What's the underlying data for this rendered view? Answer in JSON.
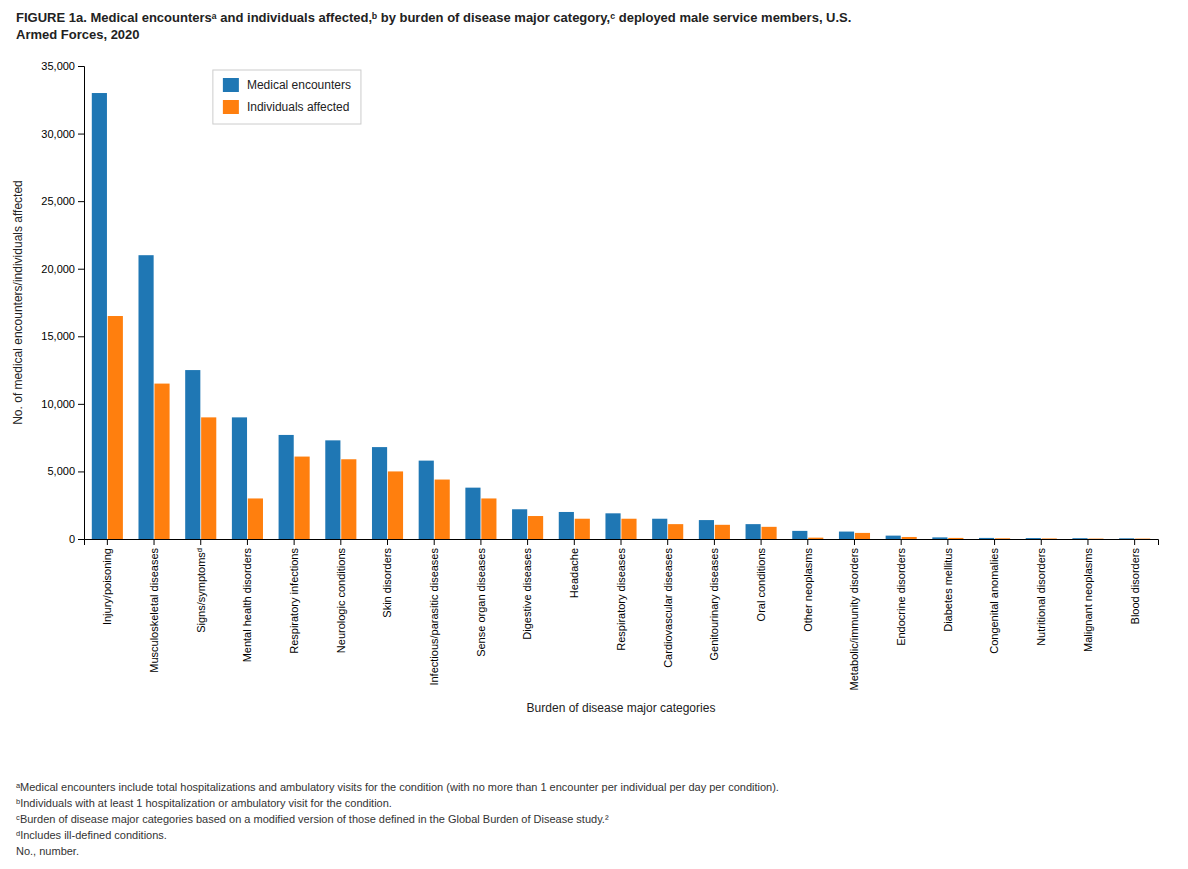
{
  "chart_data": {
    "type": "bar",
    "title": "FIGURE 1a.  Medical encountersᵃ and individuals affected,ᵇ by burden of disease major category,ᶜ deployed male service members, U.S.\nArmed Forces, 2020",
    "categories": [
      "Injury/poisoning",
      "Musculoskeletal diseases",
      "Signs/symptomsᵈ",
      "Mental health disorders",
      "Respiratory infections",
      "Neurologic conditions",
      "Skin disorders",
      "Infectious/parasitic diseases",
      "Sense organ diseases",
      "Digestive diseases",
      "Headache",
      "Respiratory diseases",
      "Cardiovascular diseases",
      "Genitourinary diseases",
      "Oral conditions",
      "Other neoplasms",
      "Metabolic/immunity disorders",
      "Endocrine disorders",
      "Diabetes mellitus",
      "Congenital anomalies",
      "Nutritional disorders",
      "Malignant neoplasms",
      "Blood disorders"
    ],
    "series": [
      {
        "name": "Medical encounters",
        "values": [
          33000,
          21000,
          12500,
          9000,
          7700,
          7300,
          6800,
          5800,
          3800,
          2200,
          2000,
          1900,
          1500,
          1400,
          1100,
          600,
          550,
          250,
          120,
          80,
          70,
          60,
          50
        ]
      },
      {
        "name": "Individuals affected",
        "values": [
          16500,
          11500,
          9000,
          3000,
          6100,
          5900,
          5000,
          4400,
          3000,
          1700,
          1500,
          1500,
          1100,
          1050,
          900,
          100,
          450,
          150,
          80,
          50,
          40,
          30,
          30
        ]
      }
    ],
    "y_label": "No. of medical encounters/individuals affected",
    "x_label": "Burden of disease major categories",
    "ylim": [
      0,
      35000
    ],
    "yticks": [
      0,
      {
        "value": 5000,
        "label": "5,000"
      },
      {
        "value": 10000,
        "label": "10,000"
      },
      {
        "value": 15000,
        "label": "15,000"
      },
      {
        "value": 20000,
        "label": "20,000"
      },
      {
        "value": 25000,
        "label": "25,000"
      },
      {
        "value": 30000,
        "label": "30,000"
      },
      {
        "value": 35000,
        "label": "35,000"
      }
    ],
    "grid": false,
    "legend": "upper left",
    "annotations": [
      "ᵃMedical encounters include total hospitalizations and ambulatory visits for the condition (with no more than 1 encounter per individual per day per condition).",
      "ᵇIndividuals with at least 1 hospitalization or ambulatory visit for the condition.",
      "ᶜBurden of disease major categories based on a modified version of those defined in the Global Burden of Disease study.²",
      "ᵈIncludes ill-defined conditions.",
      "No., number."
    ]
  }
}
